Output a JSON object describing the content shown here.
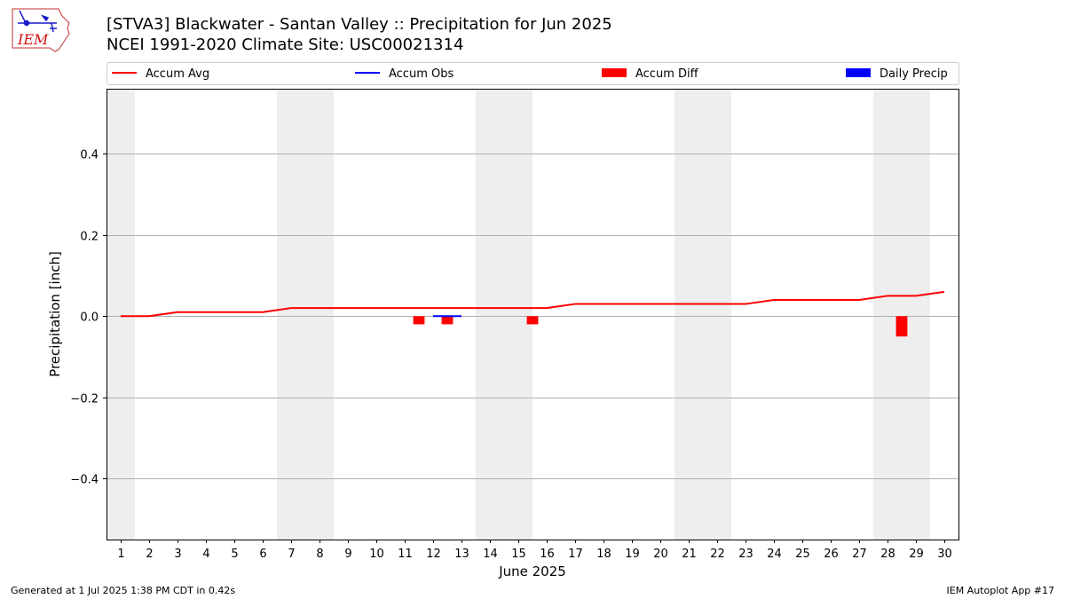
{
  "header": {
    "title_line1": "[STVA3] Blackwater - Santan Valley :: Precipitation for Jun 2025",
    "title_line2": "NCEI 1991-2020 Climate Site: USC00021314"
  },
  "logo": {
    "text": "IEM"
  },
  "footer": {
    "left": "Generated at 1 Jul 2025 1:38 PM CDT in 0.42s",
    "right": "IEM Autoplot App #17"
  },
  "colors": {
    "accum_avg": "#ff0000",
    "accum_obs": "#0000ff",
    "accum_diff": "#ff0000",
    "daily_precip": "#0000ff",
    "weekend_shade": "#eeeeee",
    "grid": "#b0b0b0"
  },
  "chart_data": {
    "type": "line",
    "xlabel": "June 2025",
    "ylabel": "Precipitation [inch]",
    "x": [
      1,
      2,
      3,
      4,
      5,
      6,
      7,
      8,
      9,
      10,
      11,
      12,
      13,
      14,
      15,
      16,
      17,
      18,
      19,
      20,
      21,
      22,
      23,
      24,
      25,
      26,
      27,
      28,
      29,
      30
    ],
    "xlim": [
      0.5,
      30.5
    ],
    "ylim": [
      -0.55,
      0.56
    ],
    "yticks": [
      -0.4,
      -0.2,
      0.0,
      0.2,
      0.4
    ],
    "ytick_labels": [
      "−0.4",
      "−0.2",
      "0.0",
      "0.2",
      "0.4"
    ],
    "grid": "horizontal",
    "legend": {
      "placement": "top",
      "entries": [
        "Accum Avg",
        "Accum Obs",
        "Accum Diff",
        "Daily Precip"
      ]
    },
    "weekend_days": [
      1,
      7,
      8,
      14,
      15,
      21,
      22,
      28,
      29
    ],
    "series": [
      {
        "name": "Accum Avg",
        "kind": "line",
        "x": [
          1,
          2,
          3,
          4,
          5,
          6,
          7,
          8,
          9,
          10,
          11,
          12,
          13,
          14,
          15,
          16,
          17,
          18,
          19,
          20,
          21,
          22,
          23,
          24,
          25,
          26,
          27,
          28,
          29,
          30
        ],
        "values": [
          0.0,
          0.0,
          0.01,
          0.01,
          0.01,
          0.01,
          0.02,
          0.02,
          0.02,
          0.02,
          0.02,
          0.02,
          0.02,
          0.02,
          0.02,
          0.02,
          0.03,
          0.03,
          0.03,
          0.03,
          0.03,
          0.03,
          0.03,
          0.04,
          0.04,
          0.04,
          0.04,
          0.05,
          0.05,
          0.06
        ]
      },
      {
        "name": "Accum Obs",
        "kind": "line",
        "x": [
          12,
          13
        ],
        "values": [
          0.0,
          0.0
        ]
      },
      {
        "name": "Accum Diff",
        "kind": "bar",
        "x": [
          12,
          13,
          16,
          29
        ],
        "values": [
          -0.02,
          -0.02,
          -0.02,
          -0.05
        ]
      },
      {
        "name": "Daily Precip",
        "kind": "bar",
        "x": [],
        "values": []
      }
    ]
  }
}
